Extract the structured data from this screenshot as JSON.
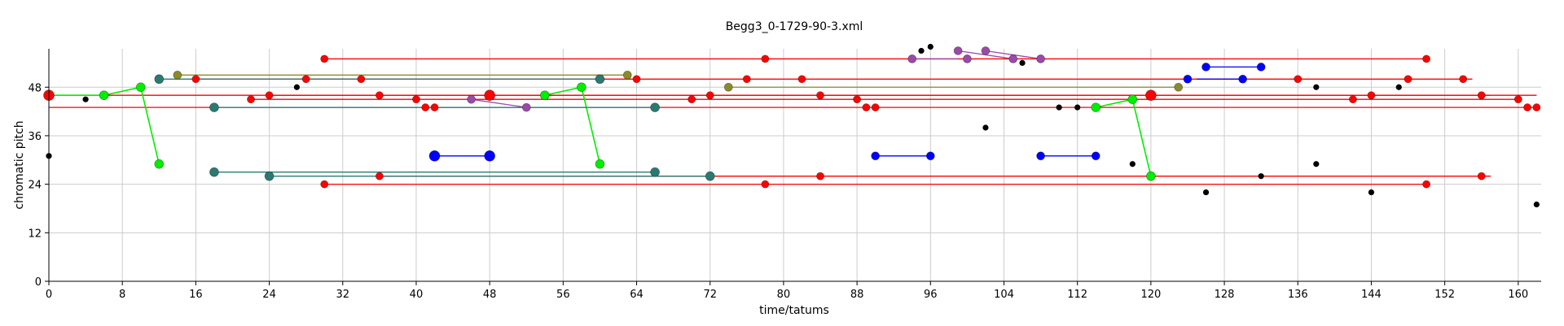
{
  "chart_data": {
    "type": "scatter",
    "title": "Begg3_0-1729-90-3.xml",
    "xlabel": "time/tatums",
    "ylabel": "chromatic pitch",
    "xlim": [
      0,
      162.5
    ],
    "ylim": [
      0,
      57.5
    ],
    "xticks": [
      0,
      8,
      16,
      24,
      32,
      40,
      48,
      56,
      64,
      72,
      80,
      88,
      96,
      104,
      112,
      120,
      128,
      136,
      144,
      152,
      160
    ],
    "yticks": [
      0,
      12,
      24,
      36,
      48
    ],
    "grid": true,
    "colors": {
      "red": "#ff0000",
      "black": "#000000",
      "green": "#00ee00",
      "blue": "#0000ff",
      "teal": "#2a7a72",
      "olive": "#8a8a2a",
      "purple": "#9a4aa8",
      "grid": "#cccccc"
    },
    "segments": [
      {
        "color": "red",
        "x": [
          0,
          162
        ],
        "y": [
          46,
          46
        ]
      },
      {
        "color": "red",
        "x": [
          0,
          162
        ],
        "y": [
          43,
          43
        ]
      },
      {
        "color": "red",
        "x": [
          16,
          155
        ],
        "y": [
          50,
          50
        ]
      },
      {
        "color": "red",
        "x": [
          30,
          150
        ],
        "y": [
          55,
          55
        ]
      },
      {
        "color": "red",
        "x": [
          24,
          157
        ],
        "y": [
          46,
          46
        ]
      },
      {
        "color": "red",
        "x": [
          30,
          150
        ],
        "y": [
          24,
          24
        ]
      },
      {
        "color": "red",
        "x": [
          36,
          157
        ],
        "y": [
          26,
          26
        ]
      },
      {
        "color": "red",
        "x": [
          22,
          160
        ],
        "y": [
          45,
          45
        ]
      },
      {
        "color": "green",
        "x": [
          0,
          6,
          10,
          12
        ],
        "y": [
          46,
          46,
          48,
          29
        ]
      },
      {
        "color": "green",
        "x": [
          54,
          58,
          60
        ],
        "y": [
          46,
          48,
          29
        ]
      },
      {
        "color": "green",
        "x": [
          114,
          118,
          120
        ],
        "y": [
          43,
          45,
          26
        ]
      },
      {
        "color": "teal",
        "x": [
          12,
          60
        ],
        "y": [
          50,
          50
        ]
      },
      {
        "color": "teal",
        "x": [
          18,
          66
        ],
        "y": [
          27,
          27
        ]
      },
      {
        "color": "teal",
        "x": [
          18,
          66
        ],
        "y": [
          43,
          43
        ]
      },
      {
        "color": "teal",
        "x": [
          24,
          72
        ],
        "y": [
          26,
          26
        ]
      },
      {
        "color": "olive",
        "x": [
          14,
          63
        ],
        "y": [
          51,
          51
        ]
      },
      {
        "color": "olive",
        "x": [
          74,
          123
        ],
        "y": [
          48,
          48
        ]
      },
      {
        "color": "blue",
        "x": [
          42,
          48
        ],
        "y": [
          31,
          31
        ]
      },
      {
        "color": "blue",
        "x": [
          90,
          96
        ],
        "y": [
          31,
          31
        ]
      },
      {
        "color": "blue",
        "x": [
          108,
          114
        ],
        "y": [
          31,
          31
        ]
      },
      {
        "color": "blue",
        "x": [
          126,
          132
        ],
        "y": [
          53,
          53
        ]
      },
      {
        "color": "blue",
        "x": [
          125,
          130
        ],
        "y": [
          50,
          50
        ]
      },
      {
        "color": "purple",
        "x": [
          46,
          52
        ],
        "y": [
          45,
          43
        ]
      },
      {
        "color": "purple",
        "x": [
          99,
          105
        ],
        "y": [
          57,
          55
        ]
      },
      {
        "color": "purple",
        "x": [
          102,
          108
        ],
        "y": [
          57,
          55
        ]
      },
      {
        "color": "purple",
        "x": [
          94,
          99
        ],
        "y": [
          55,
          55
        ]
      }
    ],
    "points": [
      {
        "color": "black",
        "x": 0,
        "y": 31
      },
      {
        "color": "black",
        "x": 4,
        "y": 45
      },
      {
        "color": "black",
        "x": 27,
        "y": 48
      },
      {
        "color": "black",
        "x": 95,
        "y": 57
      },
      {
        "color": "black",
        "x": 96,
        "y": 58
      },
      {
        "color": "black",
        "x": 106,
        "y": 54
      },
      {
        "color": "black",
        "x": 102,
        "y": 38
      },
      {
        "color": "black",
        "x": 110,
        "y": 43
      },
      {
        "color": "black",
        "x": 112,
        "y": 43
      },
      {
        "color": "black",
        "x": 118,
        "y": 29
      },
      {
        "color": "black",
        "x": 126,
        "y": 22
      },
      {
        "color": "black",
        "x": 132,
        "y": 26
      },
      {
        "color": "black",
        "x": 138,
        "y": 48
      },
      {
        "color": "black",
        "x": 138,
        "y": 29
      },
      {
        "color": "black",
        "x": 144,
        "y": 22
      },
      {
        "color": "black",
        "x": 147,
        "y": 48
      },
      {
        "color": "black",
        "x": 162,
        "y": 19
      },
      {
        "color": "red",
        "x": 0,
        "y": 46
      },
      {
        "color": "red",
        "x": 16,
        "y": 50
      },
      {
        "color": "red",
        "x": 22,
        "y": 45
      },
      {
        "color": "red",
        "x": 24,
        "y": 46
      },
      {
        "color": "red",
        "x": 28,
        "y": 50
      },
      {
        "color": "red",
        "x": 30,
        "y": 55
      },
      {
        "color": "red",
        "x": 30,
        "y": 24
      },
      {
        "color": "red",
        "x": 34,
        "y": 50
      },
      {
        "color": "red",
        "x": 36,
        "y": 46
      },
      {
        "color": "red",
        "x": 36,
        "y": 26
      },
      {
        "color": "red",
        "x": 40,
        "y": 45
      },
      {
        "color": "red",
        "x": 41,
        "y": 43
      },
      {
        "color": "red",
        "x": 42,
        "y": 43
      },
      {
        "color": "red",
        "x": 48,
        "y": 46
      },
      {
        "color": "red",
        "x": 64,
        "y": 50
      },
      {
        "color": "red",
        "x": 70,
        "y": 45
      },
      {
        "color": "red",
        "x": 72,
        "y": 46
      },
      {
        "color": "red",
        "x": 76,
        "y": 50
      },
      {
        "color": "red",
        "x": 78,
        "y": 55
      },
      {
        "color": "red",
        "x": 78,
        "y": 24
      },
      {
        "color": "red",
        "x": 82,
        "y": 50
      },
      {
        "color": "red",
        "x": 84,
        "y": 46
      },
      {
        "color": "red",
        "x": 84,
        "y": 26
      },
      {
        "color": "red",
        "x": 88,
        "y": 45
      },
      {
        "color": "red",
        "x": 89,
        "y": 43
      },
      {
        "color": "red",
        "x": 90,
        "y": 43
      },
      {
        "color": "red",
        "x": 120,
        "y": 46
      },
      {
        "color": "red",
        "x": 136,
        "y": 50
      },
      {
        "color": "red",
        "x": 142,
        "y": 45
      },
      {
        "color": "red",
        "x": 144,
        "y": 46
      },
      {
        "color": "red",
        "x": 148,
        "y": 50
      },
      {
        "color": "red",
        "x": 150,
        "y": 55
      },
      {
        "color": "red",
        "x": 150,
        "y": 24
      },
      {
        "color": "red",
        "x": 154,
        "y": 50
      },
      {
        "color": "red",
        "x": 156,
        "y": 46
      },
      {
        "color": "red",
        "x": 156,
        "y": 26
      },
      {
        "color": "red",
        "x": 160,
        "y": 45
      },
      {
        "color": "red",
        "x": 161,
        "y": 43
      },
      {
        "color": "red",
        "x": 162,
        "y": 43
      },
      {
        "color": "green",
        "x": 6,
        "y": 46
      },
      {
        "color": "green",
        "x": 10,
        "y": 48
      },
      {
        "color": "green",
        "x": 12,
        "y": 29
      },
      {
        "color": "green",
        "x": 54,
        "y": 46
      },
      {
        "color": "green",
        "x": 58,
        "y": 48
      },
      {
        "color": "green",
        "x": 60,
        "y": 29
      },
      {
        "color": "green",
        "x": 114,
        "y": 43
      },
      {
        "color": "green",
        "x": 118,
        "y": 45
      },
      {
        "color": "green",
        "x": 120,
        "y": 26
      },
      {
        "color": "teal",
        "x": 12,
        "y": 50
      },
      {
        "color": "teal",
        "x": 18,
        "y": 43
      },
      {
        "color": "teal",
        "x": 18,
        "y": 27
      },
      {
        "color": "teal",
        "x": 24,
        "y": 26
      },
      {
        "color": "teal",
        "x": 60,
        "y": 50
      },
      {
        "color": "teal",
        "x": 66,
        "y": 43
      },
      {
        "color": "teal",
        "x": 66,
        "y": 27
      },
      {
        "color": "teal",
        "x": 72,
        "y": 26
      },
      {
        "color": "olive",
        "x": 14,
        "y": 51
      },
      {
        "color": "olive",
        "x": 63,
        "y": 51
      },
      {
        "color": "olive",
        "x": 74,
        "y": 48
      },
      {
        "color": "olive",
        "x": 123,
        "y": 48
      },
      {
        "color": "blue",
        "x": 42,
        "y": 31
      },
      {
        "color": "blue",
        "x": 48,
        "y": 31
      },
      {
        "color": "blue",
        "x": 90,
        "y": 31
      },
      {
        "color": "blue",
        "x": 96,
        "y": 31
      },
      {
        "color": "blue",
        "x": 108,
        "y": 31
      },
      {
        "color": "blue",
        "x": 114,
        "y": 31
      },
      {
        "color": "blue",
        "x": 124,
        "y": 50
      },
      {
        "color": "blue",
        "x": 126,
        "y": 53
      },
      {
        "color": "blue",
        "x": 130,
        "y": 50
      },
      {
        "color": "blue",
        "x": 132,
        "y": 53
      },
      {
        "color": "purple",
        "x": 46,
        "y": 45
      },
      {
        "color": "purple",
        "x": 52,
        "y": 43
      },
      {
        "color": "purple",
        "x": 94,
        "y": 55
      },
      {
        "color": "purple",
        "x": 99,
        "y": 57
      },
      {
        "color": "purple",
        "x": 100,
        "y": 55
      },
      {
        "color": "purple",
        "x": 102,
        "y": 57
      },
      {
        "color": "purple",
        "x": 105,
        "y": 55
      },
      {
        "color": "purple",
        "x": 108,
        "y": 55
      }
    ]
  }
}
